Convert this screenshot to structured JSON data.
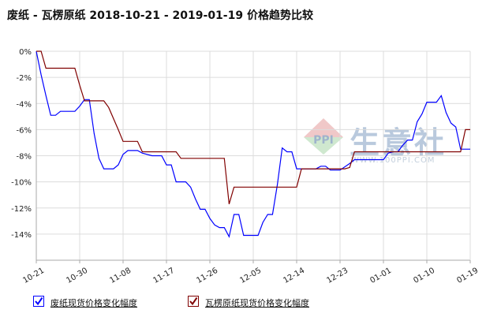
{
  "title": "废纸 - 瓦楞原纸 2018-10-21 - 2019-01-19 价格趋势比较",
  "watermark": {
    "text": "生意社",
    "url": "WWW.100PPI.COM",
    "logo_text": "PPI"
  },
  "colors": {
    "series_1": "#0000ff",
    "series_2": "#800000",
    "grid": "#dcdcdc",
    "axis": "#aaaaaa"
  },
  "chart_data": {
    "type": "line",
    "title": "废纸 - 瓦楞原纸 2018-10-21 - 2019-01-19 价格趋势比较",
    "xlabel": "",
    "ylabel": "",
    "y_unit": "%",
    "ylim": [
      -16,
      0
    ],
    "yticks": [
      0,
      -2,
      -4,
      -6,
      -8,
      -10,
      -12,
      -14
    ],
    "x_range": [
      "2018-10-21",
      "2019-01-19"
    ],
    "xtick_labels": [
      "10-21",
      "10-30",
      "11-08",
      "11-17",
      "11-26",
      "12-05",
      "12-14",
      "12-23",
      "01-01",
      "01-10",
      "01-19"
    ],
    "xtick_dates": [
      "2018-10-21",
      "2018-10-30",
      "2018-11-08",
      "2018-11-17",
      "2018-11-26",
      "2018-12-05",
      "2018-12-14",
      "2018-12-23",
      "2019-01-01",
      "2019-01-10",
      "2019-01-19"
    ],
    "grid": true,
    "legend_position": "bottom-left",
    "series": [
      {
        "name": "废纸现货价格变化幅度",
        "color": "#0000ff",
        "points": [
          [
            "2018-10-21",
            0
          ],
          [
            "2018-10-22",
            -1.8
          ],
          [
            "2018-10-23",
            -3.4
          ],
          [
            "2018-10-24",
            -4.9
          ],
          [
            "2018-10-25",
            -4.9
          ],
          [
            "2018-10-26",
            -4.6
          ],
          [
            "2018-10-28",
            -4.6
          ],
          [
            "2018-10-29",
            -4.6
          ],
          [
            "2018-10-30",
            -4.2
          ],
          [
            "2018-10-31",
            -3.7
          ],
          [
            "2018-11-01",
            -3.7
          ],
          [
            "2018-11-02",
            -6.3
          ],
          [
            "2018-11-03",
            -8.2
          ],
          [
            "2018-11-04",
            -9.0
          ],
          [
            "2018-11-06",
            -9.0
          ],
          [
            "2018-11-07",
            -8.7
          ],
          [
            "2018-11-08",
            -7.9
          ],
          [
            "2018-11-09",
            -7.6
          ],
          [
            "2018-11-11",
            -7.6
          ],
          [
            "2018-11-12",
            -7.8
          ],
          [
            "2018-11-14",
            -8.0
          ],
          [
            "2018-11-16",
            -8.0
          ],
          [
            "2018-11-17",
            -8.7
          ],
          [
            "2018-11-18",
            -8.7
          ],
          [
            "2018-11-19",
            -10.0
          ],
          [
            "2018-11-21",
            -10.0
          ],
          [
            "2018-11-22",
            -10.4
          ],
          [
            "2018-11-23",
            -11.3
          ],
          [
            "2018-11-24",
            -12.1
          ],
          [
            "2018-11-25",
            -12.1
          ],
          [
            "2018-11-26",
            -12.8
          ],
          [
            "2018-11-27",
            -13.3
          ],
          [
            "2018-11-28",
            -13.5
          ],
          [
            "2018-11-29",
            -13.5
          ],
          [
            "2018-11-30",
            -14.2
          ],
          [
            "2018-12-01",
            -12.5
          ],
          [
            "2018-12-02",
            -12.5
          ],
          [
            "2018-12-03",
            -14.1
          ],
          [
            "2018-12-05",
            -14.1
          ],
          [
            "2018-12-06",
            -14.1
          ],
          [
            "2018-12-07",
            -13.1
          ],
          [
            "2018-12-08",
            -12.5
          ],
          [
            "2018-12-09",
            -12.5
          ],
          [
            "2018-12-10",
            -10.2
          ],
          [
            "2018-12-11",
            -7.4
          ],
          [
            "2018-12-12",
            -7.7
          ],
          [
            "2018-12-13",
            -7.7
          ],
          [
            "2018-12-14",
            -9.0
          ],
          [
            "2018-12-16",
            -9.0
          ],
          [
            "2018-12-18",
            -9.0
          ],
          [
            "2018-12-19",
            -8.8
          ],
          [
            "2018-12-20",
            -8.8
          ],
          [
            "2018-12-21",
            -9.1
          ],
          [
            "2018-12-22",
            -9.1
          ],
          [
            "2018-12-23",
            -9.1
          ],
          [
            "2018-12-25",
            -8.6
          ],
          [
            "2018-12-26",
            -8.3
          ],
          [
            "2018-12-28",
            -8.3
          ],
          [
            "2019-01-01",
            -8.3
          ],
          [
            "2019-01-02",
            -7.8
          ],
          [
            "2019-01-03",
            -7.7
          ],
          [
            "2019-01-04",
            -7.7
          ],
          [
            "2019-01-05",
            -7.2
          ],
          [
            "2019-01-06",
            -6.8
          ],
          [
            "2019-01-07",
            -6.8
          ],
          [
            "2019-01-08",
            -5.4
          ],
          [
            "2019-01-09",
            -4.8
          ],
          [
            "2019-01-10",
            -3.9
          ],
          [
            "2019-01-12",
            -3.9
          ],
          [
            "2019-01-13",
            -3.4
          ],
          [
            "2019-01-14",
            -4.7
          ],
          [
            "2019-01-15",
            -5.5
          ],
          [
            "2019-01-16",
            -5.8
          ],
          [
            "2019-01-17",
            -7.5
          ],
          [
            "2019-01-19",
            -7.5
          ]
        ]
      },
      {
        "name": "瓦楞原纸现货价格变化幅度",
        "color": "#800000",
        "points": [
          [
            "2018-10-21",
            0
          ],
          [
            "2018-10-22",
            0
          ],
          [
            "2018-10-23",
            -1.3
          ],
          [
            "2018-10-29",
            -1.3
          ],
          [
            "2018-10-30",
            -2.6
          ],
          [
            "2018-10-31",
            -3.8
          ],
          [
            "2018-11-04",
            -3.8
          ],
          [
            "2018-11-05",
            -4.3
          ],
          [
            "2018-11-07",
            -6.0
          ],
          [
            "2018-11-08",
            -6.9
          ],
          [
            "2018-11-10",
            -6.9
          ],
          [
            "2018-11-11",
            -6.9
          ],
          [
            "2018-11-12",
            -7.7
          ],
          [
            "2018-11-16",
            -7.7
          ],
          [
            "2018-11-19",
            -7.7
          ],
          [
            "2018-11-20",
            -8.2
          ],
          [
            "2018-11-25",
            -8.2
          ],
          [
            "2018-11-29",
            -8.2
          ],
          [
            "2018-11-30",
            -11.7
          ],
          [
            "2018-12-01",
            -10.4
          ],
          [
            "2018-12-09",
            -10.4
          ],
          [
            "2018-12-14",
            -10.4
          ],
          [
            "2018-12-15",
            -9.0
          ],
          [
            "2018-12-24",
            -9.0
          ],
          [
            "2018-12-25",
            -8.9
          ],
          [
            "2018-12-26",
            -7.7
          ],
          [
            "2019-01-07",
            -7.7
          ],
          [
            "2019-01-17",
            -7.7
          ],
          [
            "2019-01-18",
            -6.0
          ],
          [
            "2019-01-19",
            -6.0
          ]
        ]
      }
    ]
  }
}
